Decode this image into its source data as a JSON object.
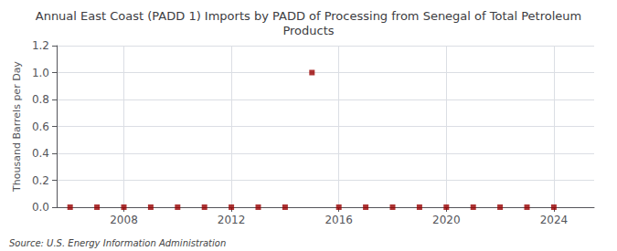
{
  "chart_data": {
    "type": "scatter",
    "title": "Annual East Coast (PADD 1) Imports by PADD of Processing from Senegal of Total Petroleum\nProducts",
    "ylabel": "Thousand Barrels per Day",
    "annotation": "Source: U.S. Energy Information Administration",
    "x": [
      2006,
      2007,
      2008,
      2009,
      2010,
      2011,
      2012,
      2013,
      2014,
      2015,
      2016,
      2017,
      2018,
      2019,
      2020,
      2021,
      2022,
      2023,
      2024
    ],
    "values": [
      0.0,
      0.0,
      0.0,
      0.0,
      0.0,
      0.0,
      0.0,
      0.0,
      0.0,
      1.0,
      0.0,
      0.0,
      0.0,
      0.0,
      0.0,
      0.0,
      0.0,
      0.0,
      0.0
    ],
    "color": "#990000",
    "marker": "square",
    "xlim": [
      2005.5,
      2025.5
    ],
    "xticks": [
      2008,
      2012,
      2016,
      2020,
      2024
    ],
    "ylim": [
      0.0,
      1.2
    ],
    "yticks": [
      {
        "value": 0.0,
        "label": "0.0"
      },
      0.2,
      0.4,
      0.6,
      0.8,
      {
        "value": 1.0,
        "label": "1.0"
      },
      1.2
    ],
    "grid": true
  }
}
